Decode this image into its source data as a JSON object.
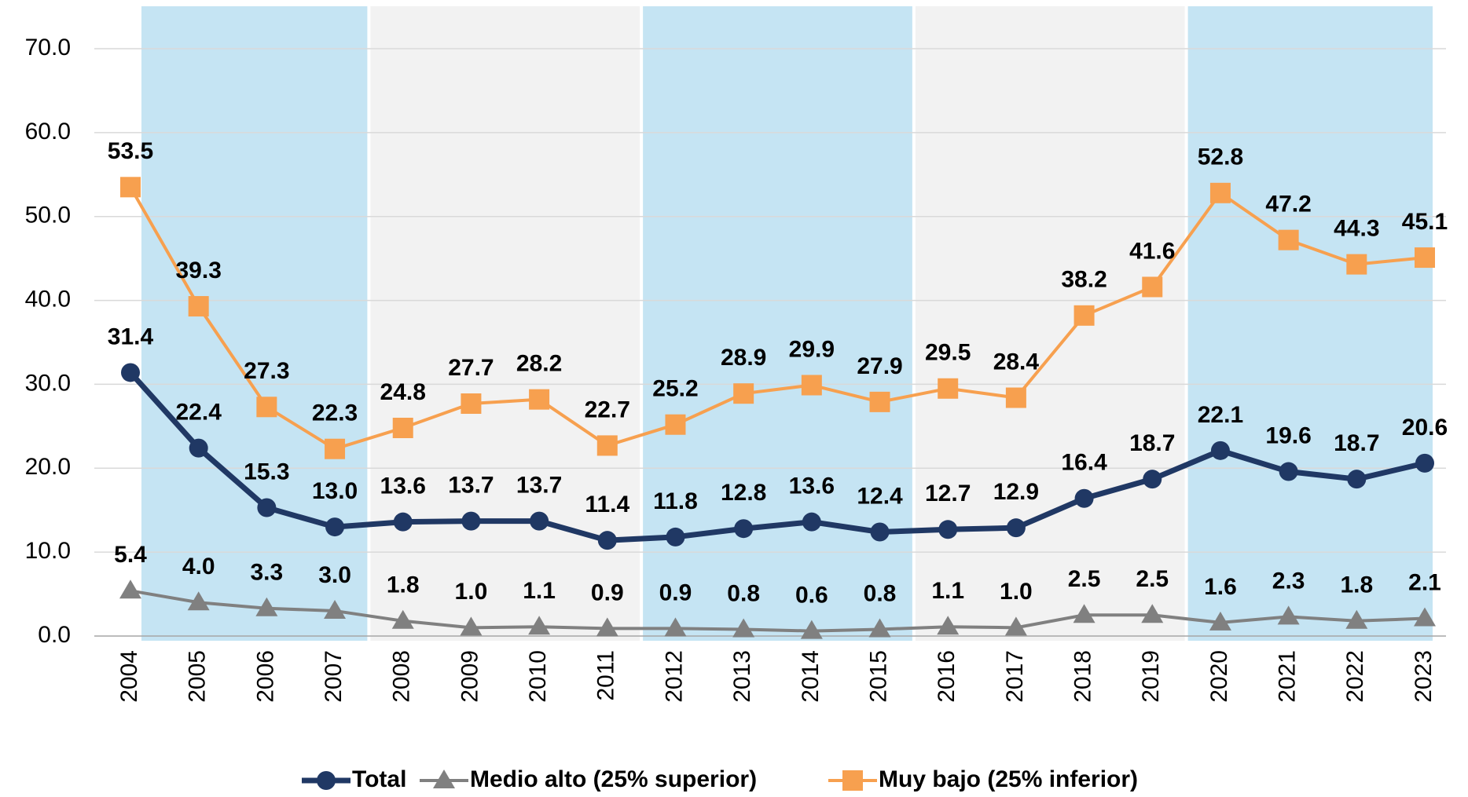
{
  "chart_data": {
    "type": "line",
    "categories": [
      "2004",
      "2005",
      "2006",
      "2007",
      "2008",
      "2009",
      "2010",
      "2011",
      "2012",
      "2013",
      "2014",
      "2015",
      "2016",
      "2017",
      "2018",
      "2019",
      "2020",
      "2021",
      "2022",
      "2023"
    ],
    "series": [
      {
        "name": "Total",
        "color": "#203864",
        "marker": "circle",
        "values": [
          31.4,
          22.4,
          15.3,
          13.0,
          13.6,
          13.7,
          13.7,
          11.4,
          11.8,
          12.8,
          13.6,
          12.4,
          12.7,
          12.9,
          16.4,
          18.7,
          22.1,
          19.6,
          18.7,
          20.6
        ],
        "value_labels": [
          "31.4",
          "22.4",
          "15.3",
          "13.0",
          "13.6",
          "13.7",
          "13.7",
          "11.4",
          "11.8",
          "12.8",
          "13.6",
          "12.4",
          "12.7",
          "12.9",
          "16.4",
          "18.7",
          "22.1",
          "19.6",
          "18.7",
          "20.6"
        ]
      },
      {
        "name": "Medio alto (25% superior)",
        "color": "#808080",
        "marker": "triangle",
        "values": [
          5.4,
          4.0,
          3.3,
          3.0,
          1.8,
          1.0,
          1.1,
          0.9,
          0.9,
          0.8,
          0.6,
          0.8,
          1.1,
          1.0,
          2.5,
          2.5,
          1.6,
          2.3,
          1.8,
          2.1
        ],
        "value_labels": [
          "5.4",
          "4.0",
          "3.3",
          "3.0",
          "1.8",
          "1.0",
          "1.1",
          "0.9",
          "0.9",
          "0.8",
          "0.6",
          "0.8",
          "1.1",
          "1.0",
          "2.5",
          "2.5",
          "1.6",
          "2.3",
          "1.8",
          "2.1"
        ]
      },
      {
        "name": "Muy bajo (25% inferior)",
        "color": "#f7a04f",
        "marker": "square",
        "values": [
          53.5,
          39.3,
          27.3,
          22.3,
          24.8,
          27.7,
          28.2,
          22.7,
          25.2,
          28.9,
          29.9,
          27.9,
          29.5,
          28.4,
          38.2,
          41.6,
          52.8,
          47.2,
          44.3,
          45.1
        ],
        "value_labels": [
          "53.5",
          "39.3",
          "27.3",
          "22.3",
          "24.8",
          "27.7",
          "28.2",
          "22.7",
          "25.2",
          "28.9",
          "29.9",
          "27.9",
          "29.5",
          "28.4",
          "38.2",
          "41.6",
          "52.8",
          "47.2",
          "44.3",
          "45.1"
        ]
      }
    ],
    "ylim": [
      0,
      70
    ],
    "yticks": [
      {
        "value": 0,
        "label": "0.0"
      },
      {
        "value": 10,
        "label": "10.0"
      },
      {
        "value": 20,
        "label": "20.0"
      },
      {
        "value": 30,
        "label": "30.0"
      },
      {
        "value": 40,
        "label": "40.0"
      },
      {
        "value": 50,
        "label": "50.0"
      },
      {
        "value": 60,
        "label": "60.0"
      },
      {
        "value": 70,
        "label": "70.0"
      }
    ],
    "grid": true,
    "legend": "bottom"
  }
}
